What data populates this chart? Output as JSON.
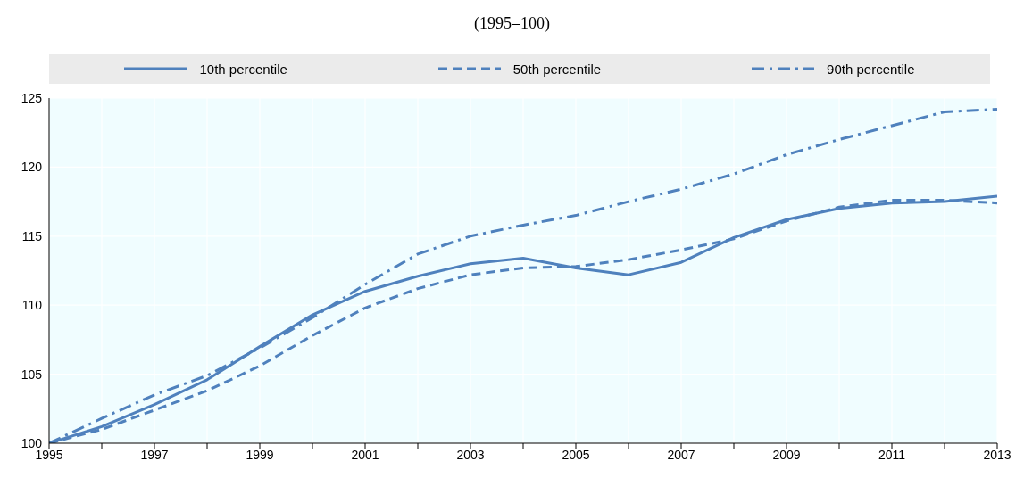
{
  "chart_data": {
    "type": "line",
    "title": "(1995=100)",
    "x": [
      1995,
      1996,
      1997,
      1998,
      1999,
      2000,
      2001,
      2002,
      2003,
      2004,
      2005,
      2006,
      2007,
      2008,
      2009,
      2010,
      2011,
      2012,
      2013
    ],
    "series": [
      {
        "name": "10th percentile",
        "color": "#4f81bd",
        "line_style": "solid",
        "values": [
          100,
          101.2,
          102.8,
          104.6,
          107.0,
          109.3,
          111.0,
          112.1,
          113.0,
          113.4,
          112.7,
          112.2,
          113.1,
          114.9,
          116.2,
          117.0,
          117.4,
          117.5,
          117.9
        ]
      },
      {
        "name": "50th percentile",
        "color": "#4f81bd",
        "line_style": "dashed",
        "values": [
          100,
          101.0,
          102.4,
          103.8,
          105.6,
          107.8,
          109.8,
          111.2,
          112.2,
          112.7,
          112.8,
          113.3,
          114.0,
          114.8,
          116.1,
          117.1,
          117.6,
          117.6,
          117.4
        ]
      },
      {
        "name": "90th percentile",
        "color": "#4f81bd",
        "line_style": "dashdot",
        "values": [
          100,
          101.8,
          103.5,
          104.9,
          106.9,
          109.1,
          111.5,
          113.7,
          115.0,
          115.8,
          116.5,
          117.5,
          118.4,
          119.5,
          120.9,
          122.0,
          123.0,
          124.0,
          124.2
        ]
      }
    ],
    "xlim": [
      1995,
      2013
    ],
    "xticks": [
      1995,
      {
        "value": 1996,
        "label": null
      },
      1997,
      {
        "value": 1998,
        "label": null
      },
      1999,
      {
        "value": 2000,
        "label": null
      },
      2001,
      {
        "value": 2002,
        "label": null
      },
      2003,
      {
        "value": 2004,
        "label": null
      },
      2005,
      {
        "value": 2006,
        "label": null
      },
      2007,
      {
        "value": 2008,
        "label": null
      },
      2009,
      {
        "value": 2010,
        "label": null
      },
      2011,
      {
        "value": 2012,
        "label": null
      },
      2013
    ],
    "ylim": [
      100,
      125
    ],
    "yticks": [
      100,
      105,
      110,
      115,
      120,
      125
    ],
    "grid": true,
    "legend": "top",
    "marker": "none"
  }
}
